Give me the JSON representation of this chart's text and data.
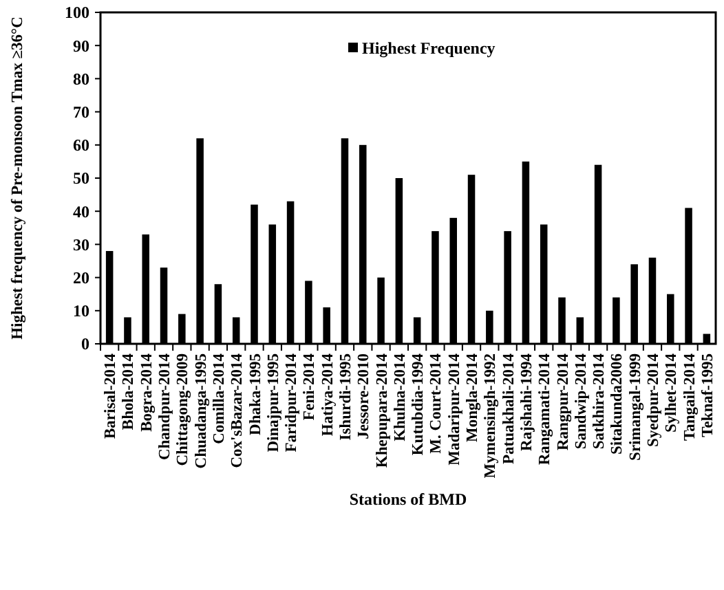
{
  "chart_data": {
    "type": "bar",
    "xlabel": "Stations of BMD",
    "ylabel": "Highest frequency of Pre-monsoon Tmax ≥36°C",
    "categories": [
      "Barisal-2014",
      "Bhola-2014",
      "Bogra-2014",
      "Chandpur-2014",
      "Chittagong-2009",
      "Chuadanga-1995",
      "Comilla-2014",
      "Cox'sBazar-2014",
      "Dhaka-1995",
      "Dinajpur-1995",
      "Faridpur-2014",
      "Feni-2014",
      "Hatiya-2014",
      "Ishurdi-1995",
      "Jessore-2010",
      "Khepupara-2014",
      "Khulna-2014",
      "Kutubdia-1994",
      "M. Court-2014",
      "Madaripur-2014",
      "Mongla-2014",
      "Mymensingh-1992",
      "Patuakhali-2014",
      "Rajshahi-1994",
      "Rangamati-2014",
      "Rangpur-2014",
      "Sandwip-2014",
      "Satkhira-2014",
      "Sitakunda2006",
      "Srimangal-1999",
      "Syedpur-2014",
      "Sylhet-2014",
      "Tangail-2014",
      "Teknaf-1995"
    ],
    "series": [
      {
        "name": "Highest Frequency",
        "color": "#000000",
        "values": [
          28,
          8,
          33,
          23,
          9,
          62,
          18,
          8,
          42,
          36,
          43,
          19,
          11,
          62,
          60,
          20,
          50,
          8,
          34,
          38,
          51,
          10,
          34,
          55,
          36,
          14,
          8,
          54,
          14,
          24,
          26,
          15,
          41,
          3
        ]
      }
    ],
    "ylim": [
      0,
      100
    ],
    "yticks": [
      0,
      10,
      20,
      30,
      40,
      50,
      60,
      70,
      80,
      90,
      100
    ],
    "grid": false,
    "legend": "top"
  }
}
